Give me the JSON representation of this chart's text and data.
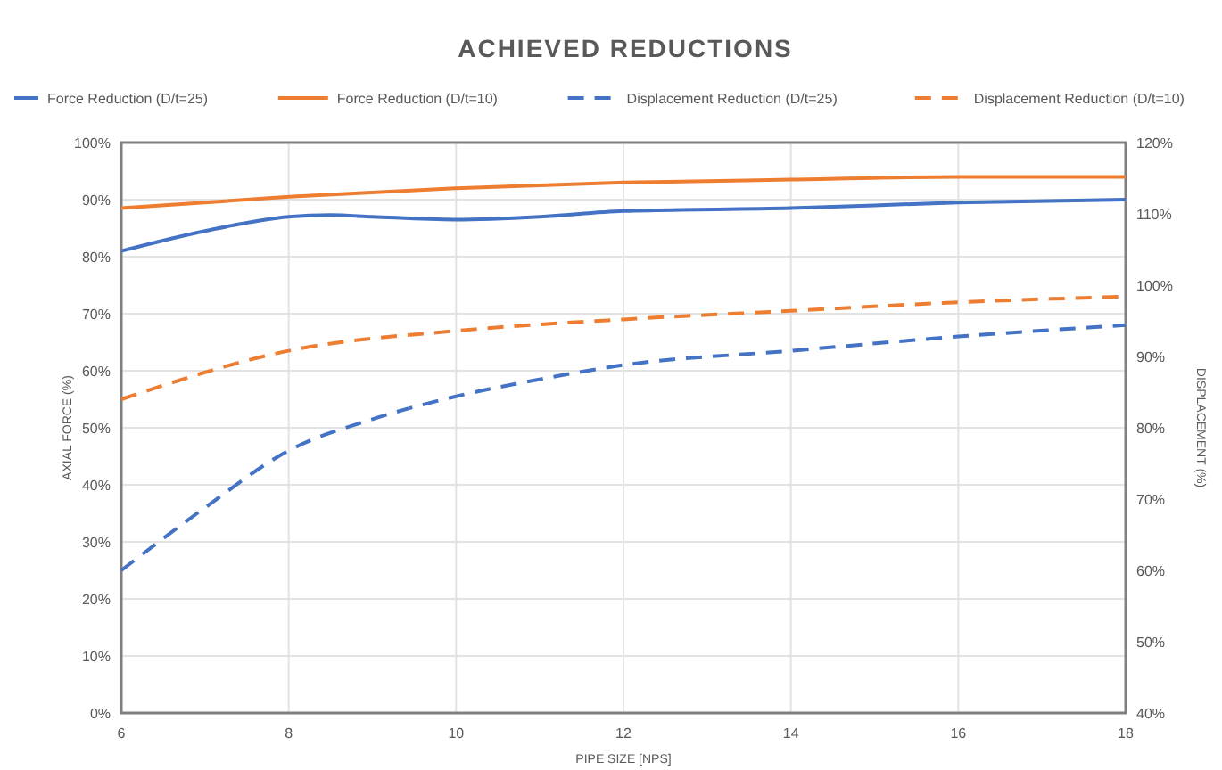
{
  "chart_data": {
    "type": "line",
    "title": "ACHIEVED REDUCTIONS",
    "xlabel": "PIPE SIZE [NPS]",
    "ylabel": "AXIAL FORCE (%)",
    "y2label": "DISPLACEMENT (%)",
    "xlim": [
      6,
      18
    ],
    "xticks": [
      6,
      8,
      10,
      12,
      14,
      16,
      18
    ],
    "ylim": [
      0,
      100
    ],
    "yticks": [
      {
        "value": 0,
        "label": "0%"
      },
      {
        "value": 10,
        "label": "10%"
      },
      {
        "value": 20,
        "label": "20%"
      },
      {
        "value": 30,
        "label": "30%"
      },
      {
        "value": 40,
        "label": "40%"
      },
      {
        "value": 50,
        "label": "50%"
      },
      {
        "value": 60,
        "label": "60%"
      },
      {
        "value": 70,
        "label": "70%"
      },
      {
        "value": 80,
        "label": "80%"
      },
      {
        "value": 90,
        "label": "90%"
      },
      {
        "value": 100,
        "label": "100%"
      }
    ],
    "y2lim": [
      40,
      120
    ],
    "y2ticks": [
      {
        "value": 40,
        "label": "40%"
      },
      {
        "value": 50,
        "label": "50%"
      },
      {
        "value": 60,
        "label": "60%"
      },
      {
        "value": 70,
        "label": "70%"
      },
      {
        "value": 80,
        "label": "80%"
      },
      {
        "value": 90,
        "label": "90%"
      },
      {
        "value": 100,
        "label": "100%"
      },
      {
        "value": 110,
        "label": "110%"
      },
      {
        "value": 120,
        "label": "120%"
      }
    ],
    "grid": true,
    "legend": "top",
    "marker": "none",
    "series": [
      {
        "name": "Force Reduction (D/t=25)",
        "color": "#4472c4",
        "line_style": "solid",
        "x": [
          6,
          7,
          8,
          8.5,
          9,
          10,
          11,
          12,
          14,
          16,
          18
        ],
        "values": [
          81,
          84.5,
          87,
          87.3,
          87,
          86.5,
          87,
          88,
          88.5,
          89.5,
          90
        ]
      },
      {
        "name": "Force Reduction (D/t=10)",
        "color": "#ed7d31",
        "line_style": "solid",
        "x": [
          6,
          8,
          10,
          12,
          14,
          16,
          18
        ],
        "values": [
          88.5,
          90.5,
          92,
          93,
          93.5,
          94,
          94
        ]
      },
      {
        "name": "Displacement Reduction (D/t=25)",
        "color": "#4472c4",
        "line_style": "dashed",
        "axis": "y2",
        "x": [
          6,
          7,
          8,
          9,
          10,
          11,
          12,
          14,
          16,
          18
        ],
        "values": [
          60,
          68.8,
          76.8,
          81.2,
          84.4,
          86.8,
          88.8,
          90.8,
          92.8,
          94.4
        ]
      },
      {
        "name": "Displacement Reduction (D/t=10)",
        "color": "#ed7d31",
        "line_style": "dashed",
        "axis": "y2",
        "x": [
          6,
          8,
          10,
          12,
          14,
          16,
          18
        ],
        "values": [
          84,
          90.8,
          93.6,
          95.2,
          96.4,
          97.6,
          98.4
        ]
      }
    ]
  }
}
